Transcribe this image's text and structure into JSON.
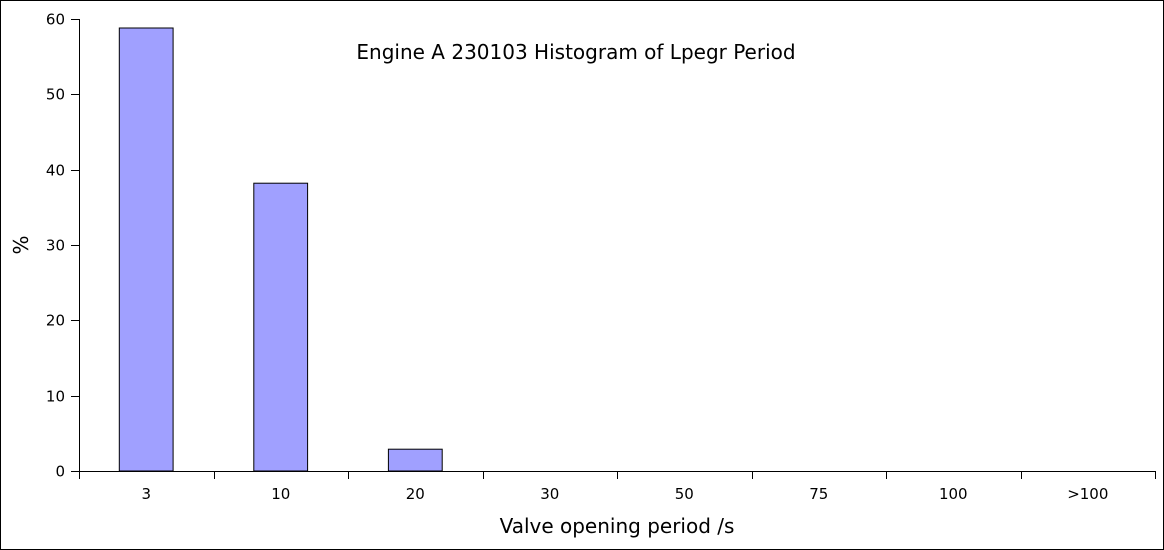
{
  "chart_data": {
    "type": "bar",
    "title": "Engine A 230103  Histogram of Lpegr Period",
    "xlabel": "Valve opening period /s",
    "ylabel": "%",
    "categories": [
      "3",
      "10",
      "20",
      "30",
      "50",
      "75",
      "100",
      ">100"
    ],
    "values": [
      58.8,
      38.2,
      2.9,
      0,
      0,
      0,
      0,
      0
    ],
    "ylim": [
      0,
      60
    ],
    "yticks": [
      0,
      10,
      20,
      30,
      40,
      50,
      60
    ],
    "grid": false,
    "bar_color": "#a0a0ff"
  }
}
